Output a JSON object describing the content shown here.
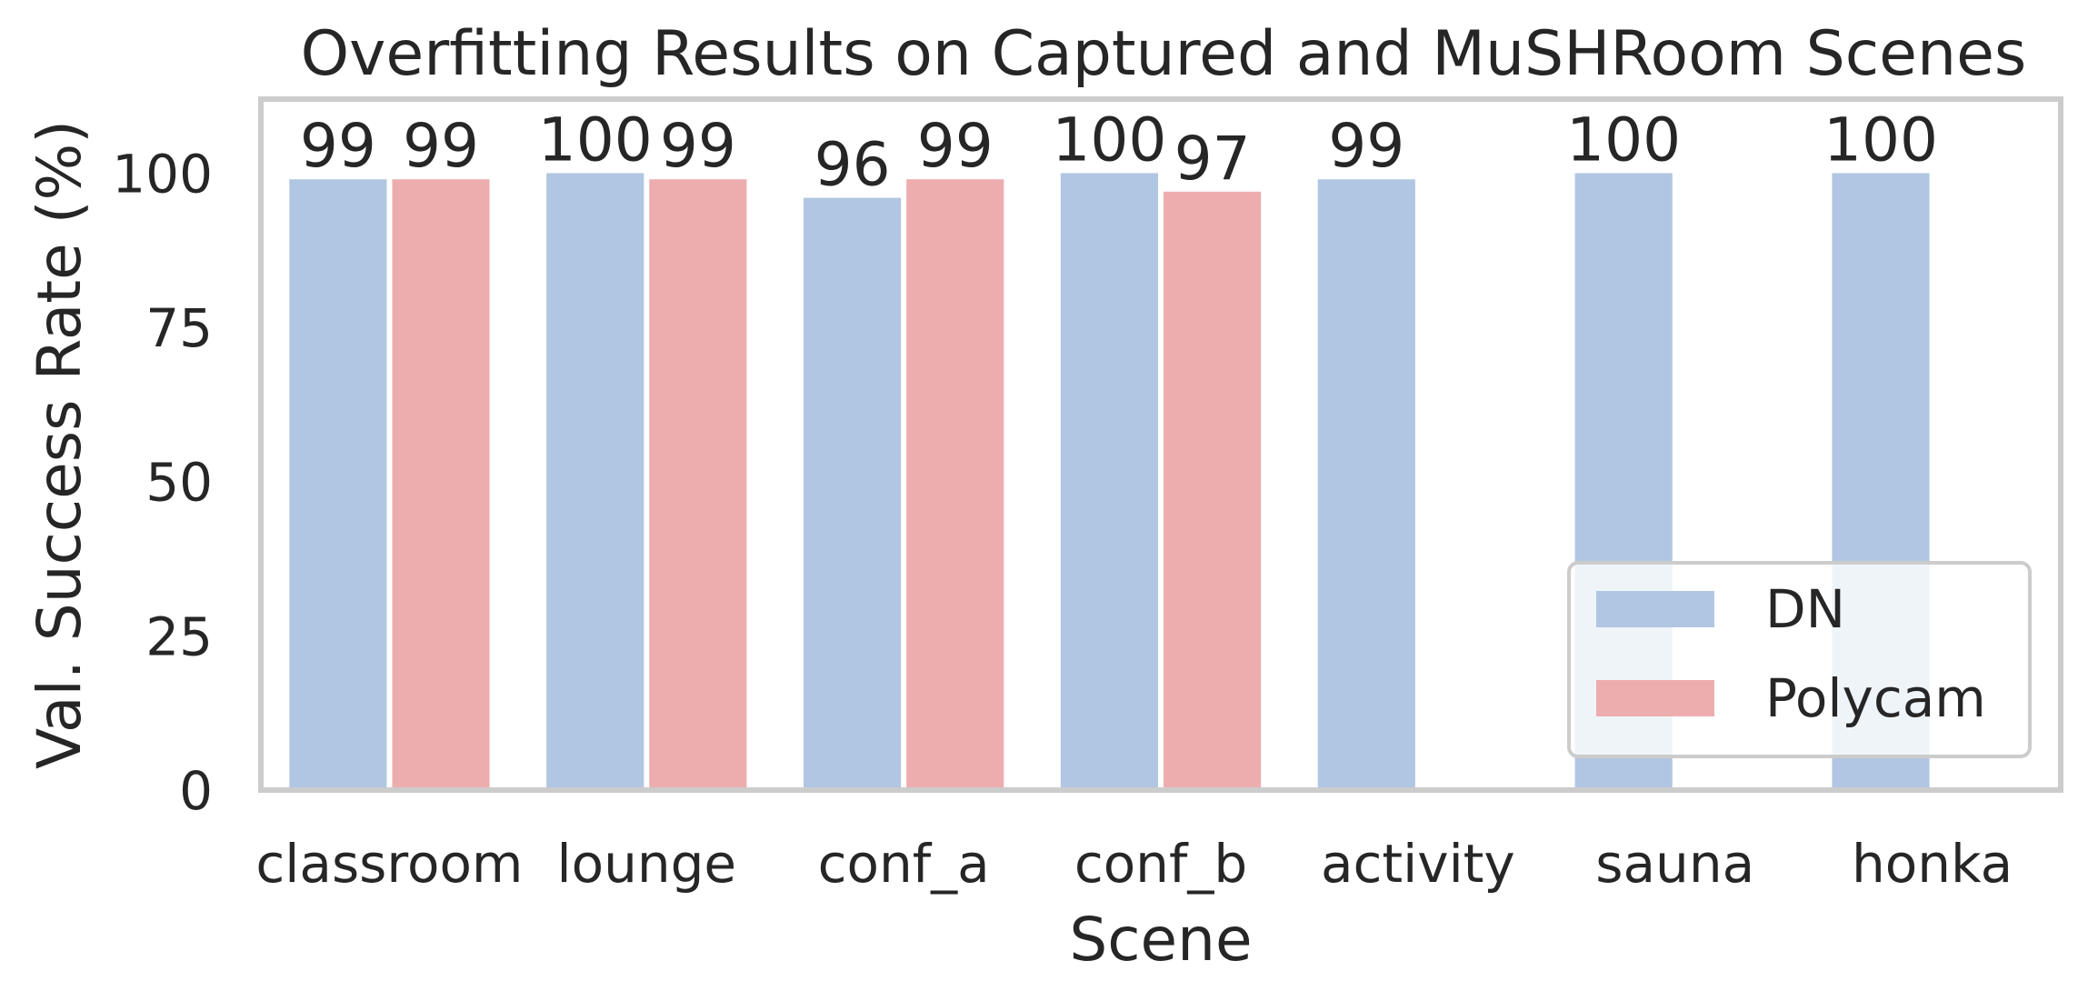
{
  "chart_data": {
    "type": "bar",
    "title": "Overfitting Results on Captured and MuSHRoom Scenes",
    "xlabel": "Scene",
    "ylabel": "Val. Success Rate (%)",
    "categories": [
      "classroom",
      "lounge",
      "conf_a",
      "conf_b",
      "activity",
      "sauna",
      "honka"
    ],
    "series": [
      {
        "name": "DN",
        "color": "#b0c6e2",
        "values": [
          99,
          100,
          96,
          100,
          99,
          100,
          100
        ]
      },
      {
        "name": "Polycam",
        "color": "#edadaf",
        "values": [
          99,
          99,
          99,
          97,
          null,
          null,
          null
        ]
      }
    ],
    "ylim": [
      0,
      112
    ],
    "yticks": [
      0,
      25,
      50,
      75,
      100
    ],
    "grid": false,
    "legend_position": "lower-right"
  }
}
